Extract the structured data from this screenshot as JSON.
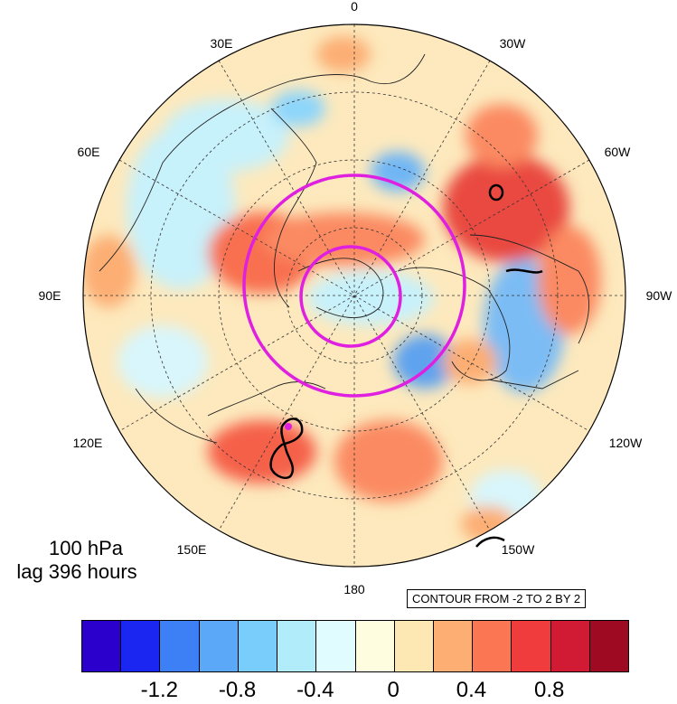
{
  "map": {
    "longitude_labels": [
      {
        "text": "0",
        "id": "lon-0"
      },
      {
        "text": "30E",
        "id": "lon-30e"
      },
      {
        "text": "30W",
        "id": "lon-30w"
      },
      {
        "text": "60E",
        "id": "lon-60e"
      },
      {
        "text": "60W",
        "id": "lon-60w"
      },
      {
        "text": "90E",
        "id": "lon-90e"
      },
      {
        "text": "90W",
        "id": "lon-90w"
      },
      {
        "text": "120E",
        "id": "lon-120e"
      },
      {
        "text": "120W",
        "id": "lon-120w"
      },
      {
        "text": "150E",
        "id": "lon-150e"
      },
      {
        "text": "150W",
        "id": "lon-150w"
      },
      {
        "text": "180",
        "id": "lon-180"
      }
    ]
  },
  "caption": {
    "level": "100 hPa",
    "lag": "lag 396 hours"
  },
  "contour_info": "CONTOUR FROM -2 TO 2 BY 2",
  "colorbar": {
    "colors": [
      "#2b00cc",
      "#1b26f0",
      "#3d80f5",
      "#5aa8f7",
      "#79cdfb",
      "#b1ecfb",
      "#e1fcfe",
      "#fefde0",
      "#fde7b3",
      "#fcae73",
      "#fb7754",
      "#f03c3c",
      "#d11a34",
      "#9e0a21"
    ],
    "tick_labels": [
      "-1.2",
      "-0.8",
      "-0.4",
      "0",
      "0.4",
      "0.8"
    ]
  },
  "overlay": {
    "circle_color": "#e020e0",
    "contour_color": "#000000"
  }
}
